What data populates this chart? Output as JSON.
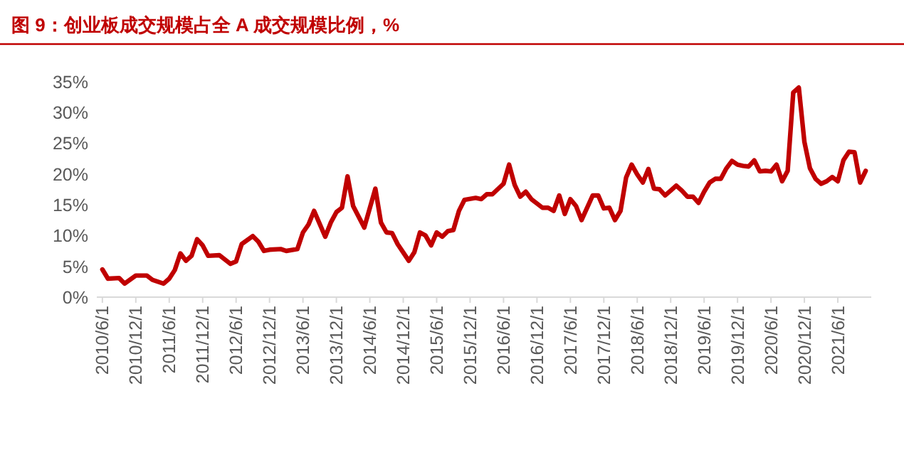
{
  "chart_data": {
    "type": "line",
    "title": "图 9：创业板成交规模占全 A 成交规模比例，%",
    "xlim": [
      "2010-05",
      "2021-12"
    ],
    "xticks": [
      {
        "value": "2010-06",
        "label": "2010/6/1"
      },
      {
        "value": "2010-12",
        "label": "2010/12/1"
      },
      {
        "value": "2011-06",
        "label": "2011/6/1"
      },
      {
        "value": "2011-12",
        "label": "2011/12/1"
      },
      {
        "value": "2012-06",
        "label": "2012/6/1"
      },
      {
        "value": "2012-12",
        "label": "2012/12/1"
      },
      {
        "value": "2013-06",
        "label": "2013/6/1"
      },
      {
        "value": "2013-12",
        "label": "2013/12/1"
      },
      {
        "value": "2014-06",
        "label": "2014/6/1"
      },
      {
        "value": "2014-12",
        "label": "2014/12/1"
      },
      {
        "value": "2015-06",
        "label": "2015/6/1"
      },
      {
        "value": "2015-12",
        "label": "2015/12/1"
      },
      {
        "value": "2016-06",
        "label": "2016/6/1"
      },
      {
        "value": "2016-12",
        "label": "2016/12/1"
      },
      {
        "value": "2017-06",
        "label": "2017/6/1"
      },
      {
        "value": "2017-12",
        "label": "2017/12/1"
      },
      {
        "value": "2018-06",
        "label": "2018/6/1"
      },
      {
        "value": "2018-12",
        "label": "2018/12/1"
      },
      {
        "value": "2019-06",
        "label": "2019/6/1"
      },
      {
        "value": "2019-12",
        "label": "2019/12/1"
      },
      {
        "value": "2020-06",
        "label": "2020/6/1"
      },
      {
        "value": "2020-12",
        "label": "2020/12/1"
      },
      {
        "value": "2021-06",
        "label": "2021/6/1"
      }
    ],
    "ylim": [
      0,
      35
    ],
    "yticks": [
      {
        "value": 0,
        "label": "0%"
      },
      {
        "value": 5,
        "label": "5%"
      },
      {
        "value": 10,
        "label": "10%"
      },
      {
        "value": 15,
        "label": "15%"
      },
      {
        "value": 20,
        "label": "20%"
      },
      {
        "value": 25,
        "label": "25%"
      },
      {
        "value": 30,
        "label": "30%"
      },
      {
        "value": 35,
        "label": "35%"
      }
    ],
    "series": [
      {
        "color": "#c00000",
        "x": [
          "2010-06",
          "2010-07",
          "2010-09",
          "2010-10",
          "2010-12",
          "2011-02",
          "2011-03",
          "2011-05",
          "2011-06",
          "2011-07",
          "2011-08",
          "2011-09",
          "2011-10",
          "2011-11",
          "2011-12",
          "2012-01",
          "2012-03",
          "2012-05",
          "2012-06",
          "2012-07",
          "2012-09",
          "2012-10",
          "2012-11",
          "2012-12",
          "2013-02",
          "2013-03",
          "2013-05",
          "2013-06",
          "2013-07",
          "2013-08",
          "2013-10",
          "2013-11",
          "2013-12",
          "2014-01",
          "2014-02",
          "2014-03",
          "2014-05",
          "2014-07",
          "2014-08",
          "2014-09",
          "2014-10",
          "2014-11",
          "2015-01",
          "2015-02",
          "2015-03",
          "2015-04",
          "2015-05",
          "2015-06",
          "2015-07",
          "2015-08",
          "2015-09",
          "2015-10",
          "2015-11",
          "2016-01",
          "2016-02",
          "2016-03",
          "2016-04",
          "2016-06",
          "2016-07",
          "2016-08",
          "2016-09",
          "2016-10",
          "2016-11",
          "2017-01",
          "2017-02",
          "2017-03",
          "2017-04",
          "2017-05",
          "2017-06",
          "2017-07",
          "2017-08",
          "2017-10",
          "2017-11",
          "2017-12",
          "2018-01",
          "2018-02",
          "2018-03",
          "2018-04",
          "2018-05",
          "2018-06",
          "2018-07",
          "2018-08",
          "2018-09",
          "2018-10",
          "2018-11",
          "2018-12",
          "2019-01",
          "2019-02",
          "2019-03",
          "2019-04",
          "2019-05",
          "2019-06",
          "2019-07",
          "2019-08",
          "2019-09",
          "2019-10",
          "2019-11",
          "2019-12",
          "2020-01",
          "2020-02",
          "2020-03",
          "2020-04",
          "2020-05",
          "2020-06",
          "2020-07",
          "2020-08",
          "2020-09",
          "2020-10",
          "2020-11",
          "2020-12",
          "2021-01",
          "2021-02",
          "2021-03",
          "2021-04",
          "2021-05",
          "2021-06",
          "2021-07",
          "2021-08",
          "2021-09",
          "2021-10",
          "2021-11"
        ],
        "values": [
          4.5,
          3.0,
          3.1,
          2.2,
          3.5,
          3.5,
          2.8,
          2.2,
          3.0,
          4.4,
          7.1,
          5.9,
          6.7,
          9.4,
          8.4,
          6.7,
          6.8,
          5.4,
          5.8,
          8.6,
          9.9,
          9.0,
          7.5,
          7.7,
          7.8,
          7.5,
          7.8,
          10.5,
          11.8,
          14.0,
          9.8,
          12.1,
          13.8,
          14.5,
          19.6,
          14.8,
          11.3,
          17.6,
          12.1,
          10.5,
          10.4,
          8.6,
          5.9,
          7.3,
          10.5,
          10.0,
          8.4,
          10.5,
          9.8,
          10.7,
          10.9,
          14.0,
          15.8,
          16.1,
          15.9,
          16.7,
          16.7,
          18.4,
          21.5,
          18.2,
          16.3,
          17.1,
          15.9,
          14.5,
          14.5,
          14.0,
          16.5,
          13.5,
          15.9,
          14.8,
          12.5,
          16.5,
          16.5,
          14.4,
          14.5,
          12.5,
          14.0,
          19.4,
          21.5,
          19.9,
          18.6,
          20.8,
          17.6,
          17.5,
          16.5,
          17.3,
          18.1,
          17.3,
          16.3,
          16.3,
          15.3,
          17.1,
          18.6,
          19.2,
          19.2,
          20.9,
          22.1,
          21.5,
          21.3,
          21.2,
          22.2,
          20.4,
          20.5,
          20.4,
          21.5,
          18.8,
          20.5,
          33.2,
          34.0,
          25.2,
          20.9,
          19.2,
          18.4,
          18.8,
          19.5,
          18.8,
          22.2,
          23.6,
          23.5,
          18.6,
          20.5
        ]
      }
    ]
  }
}
